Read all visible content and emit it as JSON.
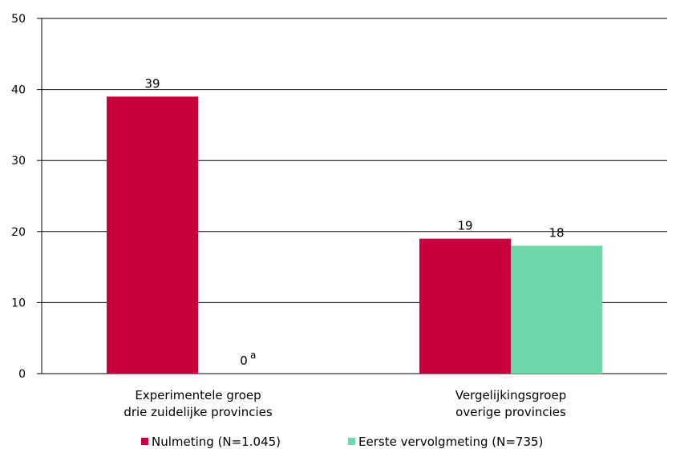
{
  "chart_data": {
    "type": "bar",
    "categories": [
      [
        "Experimentele groep",
        "drie zuidelijke provincies"
      ],
      [
        "Vergelijkingsgroep",
        "overige provincies"
      ]
    ],
    "series": [
      {
        "name": "Nulmeting (N=1.045)",
        "color": "#c8003c",
        "values": [
          39,
          19
        ],
        "labels": [
          "39",
          "19"
        ]
      },
      {
        "name": "Eerste vervolgmeting (N=735)",
        "color": "#6dd9aa",
        "values": [
          0,
          18
        ],
        "labels": [
          "0",
          "18"
        ]
      }
    ],
    "annotations": [
      {
        "series": 1,
        "category": 0,
        "superscript": "a"
      }
    ],
    "ylim": [
      0,
      50
    ],
    "yticks": [
      0,
      10,
      20,
      30,
      40,
      50
    ],
    "grid": true,
    "legend_position": "bottom"
  }
}
